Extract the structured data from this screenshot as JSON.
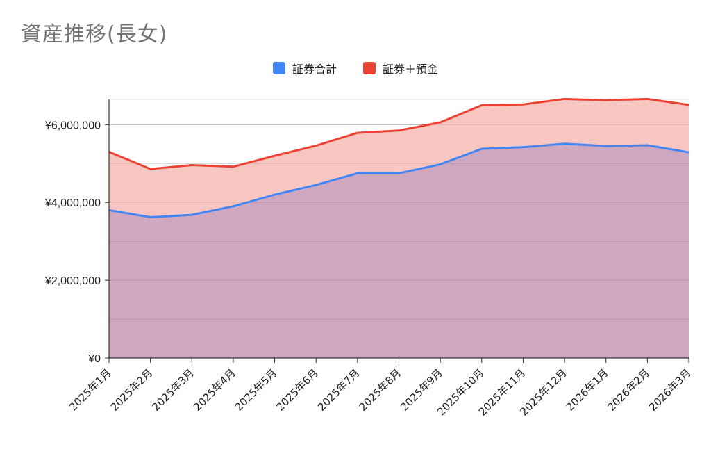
{
  "chart_data": {
    "type": "area",
    "title": "資産推移(長女)",
    "categories": [
      "2025年1月",
      "2025年2月",
      "2025年3月",
      "2025年4月",
      "2025年5月",
      "2025年6月",
      "2025年7月",
      "2025年8月",
      "2025年9月",
      "2025年10月",
      "2025年11月",
      "2025年12月",
      "2026年1月",
      "2026年2月",
      "2026年3月"
    ],
    "series": [
      {
        "name": "証券合計",
        "color": "#4285f4",
        "fill": "#cfa8bf",
        "values": [
          3800000,
          3620000,
          3680000,
          3900000,
          4200000,
          4450000,
          4750000,
          4750000,
          4980000,
          5380000,
          5420000,
          5510000,
          5450000,
          5470000,
          5290000
        ]
      },
      {
        "name": "証券＋預金",
        "color": "#ea4335",
        "fill": "#f8c6c1",
        "values": [
          5300000,
          4860000,
          4960000,
          4920000,
          5200000,
          5460000,
          5790000,
          5850000,
          6060000,
          6500000,
          6520000,
          6660000,
          6630000,
          6660000,
          6510000
        ]
      }
    ],
    "yticks": [
      "¥0",
      "¥2,000,000",
      "¥4,000,000",
      "¥6,000,000"
    ],
    "ytick_values": [
      0,
      2000000,
      4000000,
      6000000
    ],
    "ylim": [
      0,
      6650000
    ],
    "grid": true,
    "legend_position": "top"
  }
}
